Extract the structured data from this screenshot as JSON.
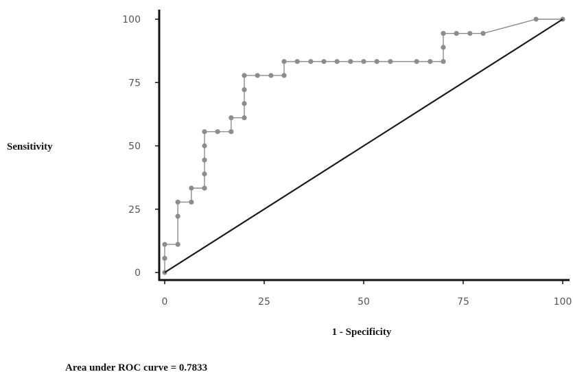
{
  "chart_data": {
    "type": "line",
    "xlabel": "1 - Specificity",
    "ylabel": "Sensitivity",
    "xlim": [
      0,
      100
    ],
    "ylim": [
      0,
      100
    ],
    "x_ticks": [
      "0",
      "25",
      "50",
      "75",
      "100"
    ],
    "y_ticks": [
      "0",
      "25",
      "50",
      "75",
      "100"
    ],
    "grid": false,
    "annotation": "Area under ROC curve = 0.7833",
    "series": [
      {
        "style": "roc-curve",
        "color": "#8c8c8c",
        "points": [
          [
            0,
            0
          ],
          [
            0,
            5.6
          ],
          [
            0,
            11.1
          ],
          [
            3.3,
            11.1
          ],
          [
            3.3,
            22.2
          ],
          [
            3.3,
            27.8
          ],
          [
            6.7,
            27.8
          ],
          [
            6.7,
            33.3
          ],
          [
            10,
            33.3
          ],
          [
            10,
            38.9
          ],
          [
            10,
            44.4
          ],
          [
            10,
            50
          ],
          [
            10,
            55.6
          ],
          [
            13.3,
            55.6
          ],
          [
            16.7,
            55.6
          ],
          [
            16.7,
            61.1
          ],
          [
            20,
            61.1
          ],
          [
            20,
            66.7
          ],
          [
            20,
            72.2
          ],
          [
            20,
            77.8
          ],
          [
            23.3,
            77.8
          ],
          [
            26.7,
            77.8
          ],
          [
            30,
            77.8
          ],
          [
            30,
            83.3
          ],
          [
            33.3,
            83.3
          ],
          [
            36.7,
            83.3
          ],
          [
            40,
            83.3
          ],
          [
            43.3,
            83.3
          ],
          [
            46.7,
            83.3
          ],
          [
            50,
            83.3
          ],
          [
            53.3,
            83.3
          ],
          [
            56.7,
            83.3
          ],
          [
            63.3,
            83.3
          ],
          [
            66.7,
            83.3
          ],
          [
            70,
            83.3
          ],
          [
            70,
            88.9
          ],
          [
            70,
            94.4
          ],
          [
            73.3,
            94.4
          ],
          [
            76.7,
            94.4
          ],
          [
            80,
            94.4
          ],
          [
            93.3,
            100
          ],
          [
            100,
            100
          ]
        ]
      },
      {
        "style": "reference-diagonal",
        "color": "#1a1a1a",
        "points": [
          [
            0,
            0
          ],
          [
            100,
            100
          ]
        ]
      }
    ]
  }
}
